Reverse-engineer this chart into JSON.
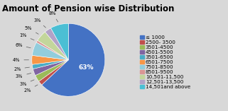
{
  "title": "Amount of Pension wise Distribution",
  "labels": [
    "≤ 1000",
    "2500- 3500",
    "3501-4500",
    "4501-5500",
    "3501-6500",
    "6501-7500",
    "7501-8500",
    "8501-9500",
    "10,501-11,500",
    "12,501-13,500",
    "14,501and above"
  ],
  "values": [
    63,
    2,
    3,
    3,
    2,
    4,
    6,
    1,
    5,
    3,
    8
  ],
  "colors": [
    "#4472C4",
    "#C0504D",
    "#9BBB59",
    "#8064A2",
    "#4BACC6",
    "#F79646",
    "#92CDDC",
    "#D99694",
    "#C3D69B",
    "#B2A2C7",
    "#4BBFD4"
  ],
  "pct_labels": [
    "63%",
    "2%",
    "3%",
    "3%",
    "2%",
    "4%",
    "6%",
    "1%",
    "5%",
    "3%",
    "8%"
  ],
  "bg_color": "#D8D8D8",
  "title_fontsize": 8.5,
  "legend_fontsize": 5.2
}
